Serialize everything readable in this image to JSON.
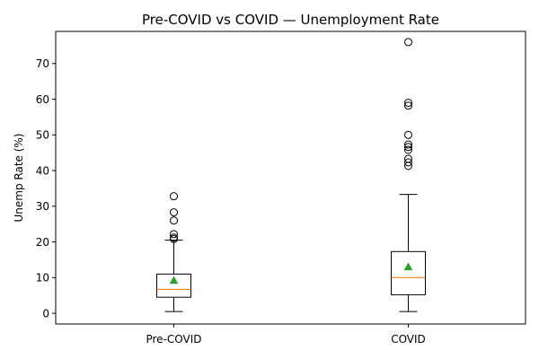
{
  "chart_data": {
    "type": "box",
    "title": "Pre-COVID vs COVID — Unemployment Rate",
    "xlabel": "",
    "ylabel": "Unemp Rate (%)",
    "categories": [
      "Pre-COVID",
      "COVID"
    ],
    "ylim": [
      -3,
      79
    ],
    "yticks": [
      0,
      10,
      20,
      30,
      40,
      50,
      60,
      70
    ],
    "grid": false,
    "colors": {
      "box": "#000000",
      "median": "#ff7f0e",
      "mean": "#2ca02c",
      "flier": "#000000"
    },
    "series": [
      {
        "category": "Pre-COVID",
        "whisker_low": 0.5,
        "q1": 4.5,
        "median": 6.7,
        "q3": 11.0,
        "whisker_high": 20.5,
        "mean": 9.2,
        "outliers": [
          20.8,
          21.2,
          22.2,
          26.0,
          28.3,
          32.8
        ]
      },
      {
        "category": "COVID",
        "whisker_low": 0.5,
        "q1": 5.2,
        "median": 10.0,
        "q3": 17.3,
        "whisker_high": 33.3,
        "mean": 13.0,
        "outliers": [
          41.3,
          42.3,
          43.3,
          45.8,
          46.6,
          47.3,
          50.0,
          58.2,
          59.0,
          76.0
        ]
      }
    ]
  }
}
